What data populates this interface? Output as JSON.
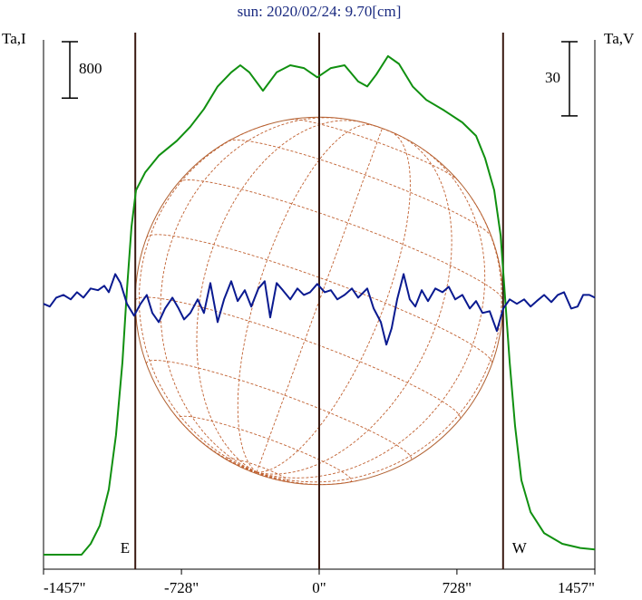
{
  "chart_data": {
    "type": "line",
    "title": "sun: 2020/02/24: 9.70[cm]",
    "y_label": "Ta,I",
    "y2_label": "Ta,V",
    "xlim": [
      -1457,
      1457
    ],
    "xticks": [
      {
        "value": -1457,
        "label": "-1457\""
      },
      {
        "value": -728,
        "label": "-728\""
      },
      {
        "value": 0,
        "label": "0\""
      },
      {
        "value": 728,
        "label": "728\""
      },
      {
        "value": 1457,
        "label": "1457\""
      }
    ],
    "ylim": [
      0,
      7500
    ],
    "y2lim": [
      -108,
      106
    ],
    "scale_bars": [
      {
        "value": 800,
        "axis": "y"
      },
      {
        "value": 30,
        "axis": "y2"
      }
    ],
    "vlines": [
      -972,
      0,
      972
    ],
    "limb_labels": [
      {
        "x": -972,
        "label": "E"
      },
      {
        "x": 972,
        "label": "W"
      }
    ],
    "series": [
      {
        "name": "I",
        "color": "#109010",
        "axis": "y",
        "x": [
          -1457,
          -1352,
          -1256,
          -1208,
          -1160,
          -1112,
          -1074,
          -1040,
          -1016,
          -992,
          -968,
          -920,
          -848,
          -752,
          -681,
          -609,
          -537,
          -465,
          -417,
          -369,
          -297,
          -225,
          -153,
          -81,
          -10,
          62,
          134,
          206,
          254,
          302,
          364,
          422,
          494,
          566,
          661,
          757,
          829,
          877,
          925,
          959,
          983,
          1007,
          1035,
          1069,
          1117,
          1189,
          1285,
          1380,
          1457
        ],
        "values": [
          205,
          205,
          205,
          360,
          615,
          1130,
          1900,
          2930,
          3960,
          4850,
          5370,
          5620,
          5860,
          6070,
          6270,
          6520,
          6840,
          7040,
          7140,
          7040,
          6780,
          7040,
          7140,
          7100,
          6970,
          7100,
          7140,
          6910,
          6840,
          7010,
          7270,
          7160,
          6840,
          6650,
          6500,
          6330,
          6140,
          5820,
          5370,
          4730,
          3830,
          2930,
          2030,
          1260,
          810,
          510,
          360,
          300,
          280
        ]
      },
      {
        "name": "V",
        "color": "#0a1a90",
        "axis": "y2",
        "x": [
          -1457,
          -1424,
          -1390,
          -1352,
          -1313,
          -1280,
          -1246,
          -1208,
          -1169,
          -1136,
          -1112,
          -1078,
          -1050,
          -1016,
          -978,
          -944,
          -911,
          -882,
          -848,
          -815,
          -776,
          -743,
          -714,
          -681,
          -642,
          -609,
          -575,
          -537,
          -503,
          -465,
          -431,
          -393,
          -359,
          -321,
          -288,
          -259,
          -225,
          -192,
          -153,
          -115,
          -81,
          -48,
          -10,
          29,
          62,
          96,
          134,
          173,
          206,
          254,
          288,
          326,
          355,
          383,
          412,
          446,
          479,
          508,
          542,
          575,
          614,
          652,
          685,
          719,
          757,
          796,
          829,
          863,
          901,
          939,
          973,
          1007,
          1045,
          1083,
          1117,
          1150,
          1189,
          1227,
          1261,
          1294,
          1332,
          1366,
          1395,
          1428,
          1457
        ],
        "values": [
          -0.7,
          -1.8,
          1.8,
          2.9,
          1.1,
          4.0,
          1.8,
          5.5,
          4.8,
          6.6,
          4.0,
          11.3,
          7.7,
          -0.7,
          -5.5,
          -0.7,
          2.9,
          -4.4,
          -8.1,
          -2.6,
          1.8,
          -2.6,
          -7.0,
          -4.4,
          1.1,
          -4.4,
          7.7,
          -8.1,
          1.1,
          8.4,
          0.4,
          4.8,
          -1.8,
          5.5,
          8.4,
          -6.2,
          7.7,
          4.8,
          1.1,
          5.5,
          2.9,
          4.0,
          7.3,
          4.0,
          4.8,
          1.1,
          2.9,
          5.5,
          1.8,
          5.5,
          -2.6,
          -8.1,
          -17.2,
          -10.6,
          1.1,
          11.3,
          1.1,
          -1.8,
          4.8,
          0.4,
          5.5,
          4.0,
          6.2,
          1.1,
          2.9,
          -2.6,
          0.4,
          -4.4,
          -3.7,
          -11.7,
          -2.6,
          1.1,
          -0.7,
          1.1,
          -1.8,
          0.4,
          2.9,
          0,
          2.9,
          4.0,
          -2.6,
          -1.8,
          2.9,
          2.9,
          1.8
        ]
      }
    ]
  }
}
